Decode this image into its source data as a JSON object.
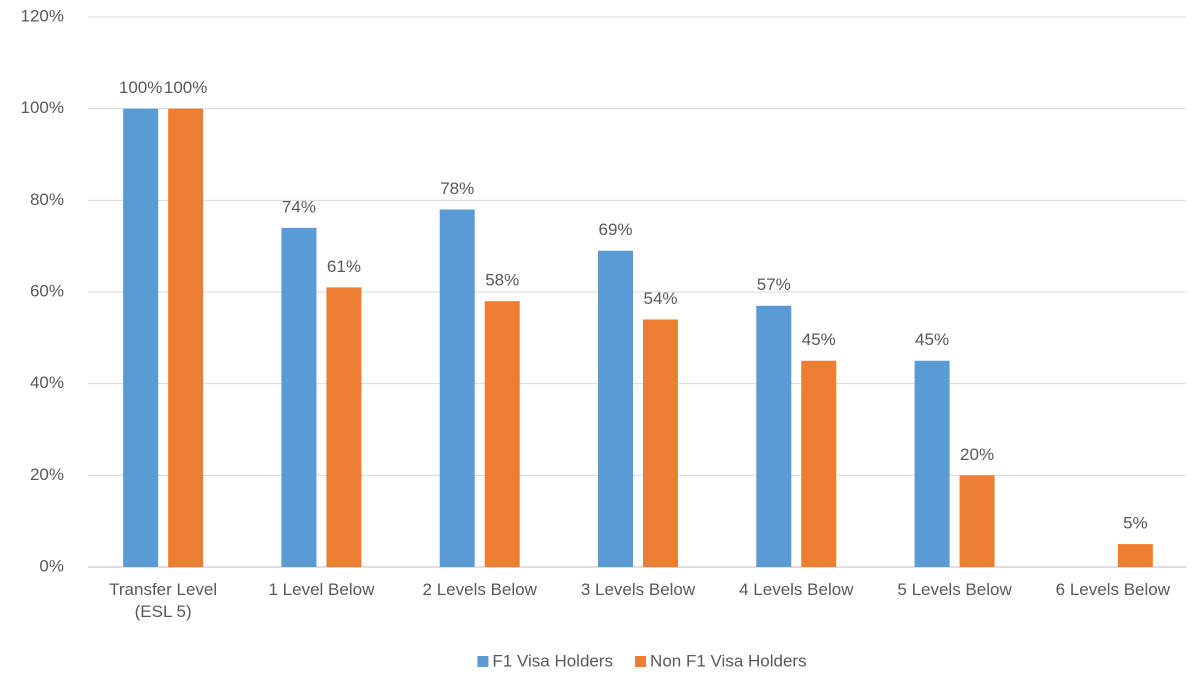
{
  "chart_data": {
    "type": "bar",
    "categories": [
      "Transfer Level (ESL 5)",
      "1 Level Below",
      "2 Levels Below",
      "3 Levels Below",
      "4 Levels Below",
      "5 Levels Below",
      "6 Levels Below"
    ],
    "series": [
      {
        "name": "F1 Visa Holders",
        "color": "#5b9bd5",
        "values": [
          100,
          74,
          78,
          69,
          57,
          45,
          null
        ],
        "value_labels": [
          "100%",
          "74%",
          "78%",
          "69%",
          "57%",
          "45%",
          null
        ]
      },
      {
        "name": "Non F1 Visa Holders",
        "color": "#ed7d31",
        "values": [
          100,
          61,
          58,
          54,
          45,
          20,
          5
        ],
        "value_labels": [
          "100%",
          "61%",
          "58%",
          "54%",
          "45%",
          "20%",
          "5%"
        ]
      }
    ],
    "ylim": [
      0,
      120
    ],
    "yticks": [
      {
        "value": 0,
        "label": "0%"
      },
      {
        "value": 20,
        "label": "20%"
      },
      {
        "value": 40,
        "label": "40%"
      },
      {
        "value": 60,
        "label": "60%"
      },
      {
        "value": 80,
        "label": "80%"
      },
      {
        "value": 100,
        "label": "100%"
      },
      {
        "value": 120,
        "label": "120%"
      }
    ],
    "grid": true,
    "legend": "bottom"
  }
}
